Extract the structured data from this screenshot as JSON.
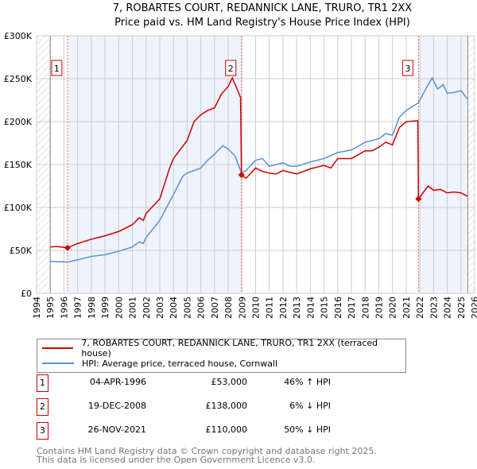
{
  "title": "7, ROBARTES COURT, REDANNICK LANE, TRURO, TR1 2XX",
  "subtitle": "Price paid vs. HM Land Registry's House Price Index (HPI)",
  "chart_data": {
    "type": "line",
    "xlim": [
      1994,
      2026
    ],
    "ylim": [
      0,
      300000
    ],
    "yticks": [
      {
        "v": 0,
        "l": "£0"
      },
      {
        "v": 50000,
        "l": "£50K"
      },
      {
        "v": 100000,
        "l": "£100K"
      },
      {
        "v": 150000,
        "l": "£150K"
      },
      {
        "v": 200000,
        "l": "£200K"
      },
      {
        "v": 250000,
        "l": "£250K"
      },
      {
        "v": 300000,
        "l": "£300K"
      }
    ],
    "xticks": [
      "1994",
      "1995",
      "1996",
      "1997",
      "1998",
      "1999",
      "2000",
      "2001",
      "2002",
      "2003",
      "2004",
      "2005",
      "2006",
      "2007",
      "2008",
      "2009",
      "2010",
      "2011",
      "2012",
      "2013",
      "2014",
      "2015",
      "2016",
      "2017",
      "2018",
      "2019",
      "2020",
      "2021",
      "2022",
      "2023",
      "2024",
      "2025",
      "2026"
    ],
    "series": [
      {
        "name": "7, ROBARTES COURT, REDANNICK LANE, TRURO, TR1 2XX (terraced house)",
        "color": "#cc0000",
        "x": [
          1995,
          1995.5,
          1996.26,
          1997,
          1998,
          1999,
          2000,
          2001,
          2001.5,
          2001.8,
          2002,
          2003,
          2003.7,
          2004,
          2005,
          2005.5,
          2006,
          2006.5,
          2007,
          2007.5,
          2008,
          2008.3,
          2008.7,
          2008.9,
          2008.97,
          2009.3,
          2010,
          2010.5,
          2011,
          2011.5,
          2012,
          2012.5,
          2013,
          2014,
          2015,
          2015.5,
          2016,
          2017,
          2018,
          2018.5,
          2019,
          2019.5,
          2020,
          2020.5,
          2021,
          2021.85,
          2021.9,
          2022.6,
          2023,
          2023.5,
          2024,
          2024.5,
          2025,
          2025.5
        ],
        "y": [
          54000,
          54500,
          53000,
          58000,
          63000,
          67000,
          72000,
          80000,
          88000,
          85000,
          93000,
          110000,
          145000,
          157000,
          178000,
          200000,
          208000,
          213000,
          216000,
          232000,
          241000,
          251000,
          236000,
          228000,
          138000,
          134000,
          146000,
          142000,
          140000,
          139000,
          143000,
          141000,
          139000,
          145000,
          149000,
          146000,
          157000,
          157000,
          166000,
          166000,
          170000,
          176000,
          173000,
          193000,
          200000,
          201000,
          110000,
          125000,
          120000,
          121000,
          117000,
          118000,
          117000,
          113000
        ]
      },
      {
        "name": "HPI: Average price, terraced house, Cornwall",
        "color": "#5b8fd6",
        "x": [
          1995,
          1996.26,
          1997,
          1998,
          1999,
          2000,
          2001,
          2001.5,
          2001.8,
          2002,
          2003,
          2003.5,
          2004,
          2004.7,
          2005,
          2006,
          2006.5,
          2007,
          2007.6,
          2008,
          2008.5,
          2008.97,
          2009.3,
          2010,
          2010.5,
          2011,
          2011.5,
          2012,
          2012.5,
          2013,
          2014,
          2015,
          2016,
          2017,
          2018,
          2019,
          2019.5,
          2020,
          2020.5,
          2021,
          2021.9,
          2022.5,
          2022.9,
          2023.3,
          2023.7,
          2024,
          2024.5,
          2025,
          2025.5
        ],
        "y": [
          37000,
          36500,
          39000,
          43000,
          45000,
          49000,
          54000,
          60000,
          58000,
          65000,
          85000,
          100000,
          115000,
          137000,
          140000,
          146000,
          155000,
          162000,
          172000,
          168000,
          160000,
          140000,
          143000,
          155000,
          157000,
          148000,
          150000,
          152000,
          148000,
          148000,
          153000,
          157000,
          164000,
          167000,
          176000,
          180000,
          186000,
          184000,
          205000,
          213000,
          222000,
          240000,
          251000,
          238000,
          243000,
          233000,
          234000,
          236000,
          226000
        ]
      }
    ],
    "sales": [
      {
        "n": "1",
        "x": 1996.26,
        "y": 53000,
        "date": "04-APR-1996",
        "price": "£53,000",
        "hpi": "46% ↑ HPI"
      },
      {
        "n": "2",
        "x": 2008.97,
        "y": 138000,
        "date": "19-DEC-2008",
        "price": "£138,000",
        "hpi": "6% ↓ HPI"
      },
      {
        "n": "3",
        "x": 2021.9,
        "y": 110000,
        "date": "26-NOV-2021",
        "price": "£110,000",
        "hpi": "50% ↓ HPI"
      }
    ],
    "shaded": [
      [
        1996.26,
        2008.97
      ],
      [
        2021.9,
        2025.5
      ]
    ],
    "hatched": [
      [
        1994,
        1995
      ],
      [
        2025.5,
        2026
      ]
    ]
  },
  "footer": [
    "Contains HM Land Registry data © Crown copyright and database right 2025.",
    "This data is licensed under the Open Government Licence v3.0."
  ]
}
